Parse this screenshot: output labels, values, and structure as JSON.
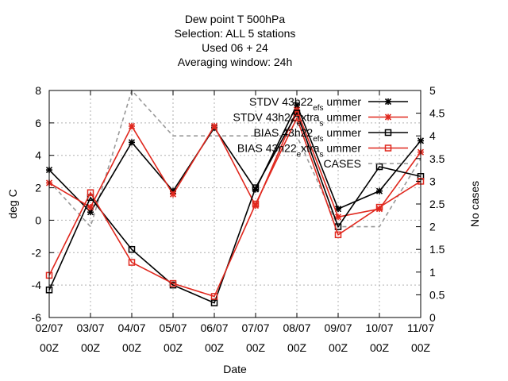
{
  "chart_data": {
    "type": "line",
    "title_lines": [
      "Dew point T 500hPa",
      "Selection: ALL       5 stations",
      "Used  06  + 24",
      "Averaging window: 24h"
    ],
    "xlabel": "Date",
    "ylabel": "deg C",
    "y2label": "No cases",
    "x_tick_labels": [
      [
        "02/07",
        "00Z"
      ],
      [
        "03/07",
        "00Z"
      ],
      [
        "04/07",
        "00Z"
      ],
      [
        "05/07",
        "00Z"
      ],
      [
        "06/07",
        "00Z"
      ],
      [
        "07/07",
        "00Z"
      ],
      [
        "08/07",
        "00Z"
      ],
      [
        "09/07",
        "00Z"
      ],
      [
        "10/07",
        "00Z"
      ],
      [
        "11/07",
        "00Z"
      ]
    ],
    "ylim": [
      -6,
      8
    ],
    "yticks": [
      "-6",
      "-4",
      "-2",
      "0",
      "2",
      "4",
      "6",
      "8"
    ],
    "y2lim": [
      0,
      5
    ],
    "y2ticks": [
      "0",
      "0.5",
      "1",
      "1.5",
      "2",
      "2.5",
      "3",
      "3.5",
      "4",
      "4.5",
      "5"
    ],
    "grid": true,
    "legend_position": "top-right",
    "series": [
      {
        "name": "STDV 43h22_ef_s ummer",
        "legend_parts": [
          [
            "STDV 43h22",
            ""
          ],
          [
            "ef",
            "sub"
          ],
          [
            "s",
            "sub"
          ],
          [
            " ummer",
            ""
          ]
        ],
        "axis": "y",
        "marker": "star",
        "color": "#000000",
        "values": [
          3.1,
          0.5,
          4.8,
          1.8,
          5.7,
          1.9,
          7.1,
          0.7,
          1.8,
          4.9
        ]
      },
      {
        "name": "STDV 43h22_extra_s ummer",
        "legend_parts": [
          [
            "STDV 43h22",
            ""
          ],
          [
            "e",
            "sub"
          ],
          [
            "xtra",
            ""
          ],
          [
            "s",
            "sub"
          ],
          [
            " ummer",
            ""
          ]
        ],
        "axis": "y",
        "marker": "star",
        "color": "#e0281e",
        "values": [
          2.3,
          0.8,
          5.8,
          1.6,
          5.8,
          0.9,
          6.8,
          0.2,
          0.7,
          4.2
        ]
      },
      {
        "name": "BIAS 43h22_ef_s ummer",
        "legend_parts": [
          [
            "BIAS 43h22",
            ""
          ],
          [
            "ef",
            "sub"
          ],
          [
            "s",
            "sub"
          ],
          [
            " ummer",
            ""
          ]
        ],
        "axis": "y",
        "marker": "square",
        "color": "#000000",
        "values": [
          -4.3,
          1.4,
          -1.8,
          -4.0,
          -5.1,
          2.0,
          6.6,
          -0.4,
          3.3,
          2.7
        ]
      },
      {
        "name": "BIAS 43h22_extra_s ummer",
        "legend_parts": [
          [
            "BIAS 43h22",
            ""
          ],
          [
            "e",
            "sub"
          ],
          [
            "xtra",
            ""
          ],
          [
            "s",
            "sub"
          ],
          [
            " ummer",
            ""
          ]
        ],
        "axis": "y",
        "marker": "square",
        "color": "#e0281e",
        "values": [
          -3.4,
          1.7,
          -2.6,
          -3.9,
          -4.7,
          1.0,
          6.3,
          -0.9,
          0.8,
          2.4
        ]
      },
      {
        "name": "CASES",
        "legend_parts": [
          [
            "CASES",
            ""
          ]
        ],
        "axis": "y2",
        "marker": "none",
        "color": "#999999",
        "dashed": true,
        "values": [
          3,
          2,
          5,
          4,
          4,
          4,
          4,
          2,
          2,
          3.5
        ]
      }
    ]
  }
}
